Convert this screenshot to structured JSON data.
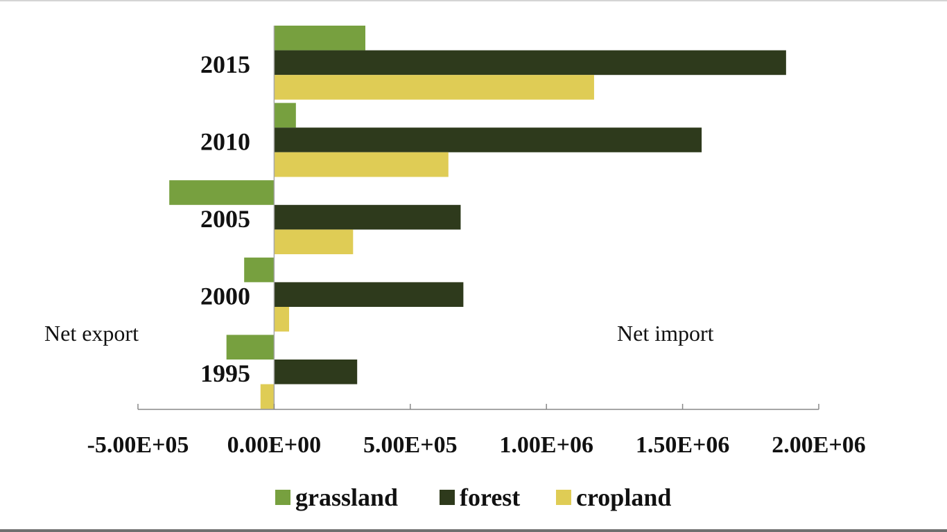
{
  "chart_data": {
    "type": "bar",
    "orientation": "horizontal",
    "categories": [
      "2015",
      "2010",
      "2005",
      "2000",
      "1995"
    ],
    "series": [
      {
        "name": "grassland",
        "color": "#77A03F",
        "values": [
          335000,
          80000,
          -385000,
          -110000,
          -175000
        ]
      },
      {
        "name": "forest",
        "color": "#2E3A1C",
        "values": [
          1880000,
          1570000,
          685000,
          695000,
          305000
        ]
      },
      {
        "name": "cropland",
        "color": "#DFCC55",
        "values": [
          1175000,
          640000,
          290000,
          55000,
          -50000
        ]
      }
    ],
    "xlim": [
      -500000,
      2000000
    ],
    "xticks": [
      -500000,
      0,
      500000,
      1000000,
      1500000,
      2000000
    ],
    "xtick_labels": [
      "-5.00E+05",
      "0.00E+00",
      "5.00E+05",
      "1.00E+06",
      "1.50E+06",
      "2.00E+06"
    ],
    "annotations": {
      "left": "Net export",
      "right": "Net import"
    },
    "legend_position": "bottom",
    "grid": false
  }
}
